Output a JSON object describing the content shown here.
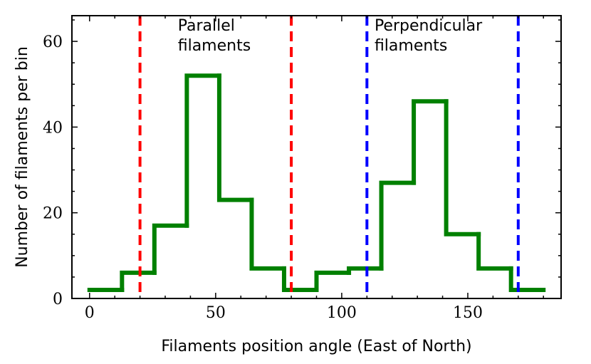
{
  "chart_data": {
    "type": "histogram",
    "xlabel": "Filaments position angle (East of North)",
    "ylabel": "Number of filaments per bin",
    "xlim": [
      -7,
      187
    ],
    "ylim": [
      0,
      66
    ],
    "x_ticks": [
      0,
      50,
      100,
      150
    ],
    "y_ticks": [
      0,
      20,
      40,
      60
    ],
    "bin_edges": [
      0,
      12.86,
      25.71,
      38.57,
      51.43,
      64.29,
      77.14,
      90,
      102.86,
      115.71,
      128.57,
      141.43,
      154.29,
      167.14,
      180
    ],
    "counts": [
      2,
      6,
      17,
      52,
      23,
      7,
      2,
      6,
      7,
      27,
      46,
      15,
      7,
      2
    ],
    "series_color": "#008000",
    "vlines": [
      {
        "x": 20,
        "color": "#ff0000",
        "style": "dashed"
      },
      {
        "x": 80,
        "color": "#ff0000",
        "style": "dashed"
      },
      {
        "x": 110,
        "color": "#0000ff",
        "style": "dashed"
      },
      {
        "x": 170,
        "color": "#0000ff",
        "style": "dashed"
      }
    ],
    "annotations": [
      {
        "lines": [
          "Parallel",
          "filaments"
        ],
        "x": 35,
        "y": 63
      },
      {
        "lines": [
          "Perpendicular",
          "filaments"
        ],
        "x": 113,
        "y": 63
      }
    ],
    "grid": false,
    "legend": "none"
  }
}
